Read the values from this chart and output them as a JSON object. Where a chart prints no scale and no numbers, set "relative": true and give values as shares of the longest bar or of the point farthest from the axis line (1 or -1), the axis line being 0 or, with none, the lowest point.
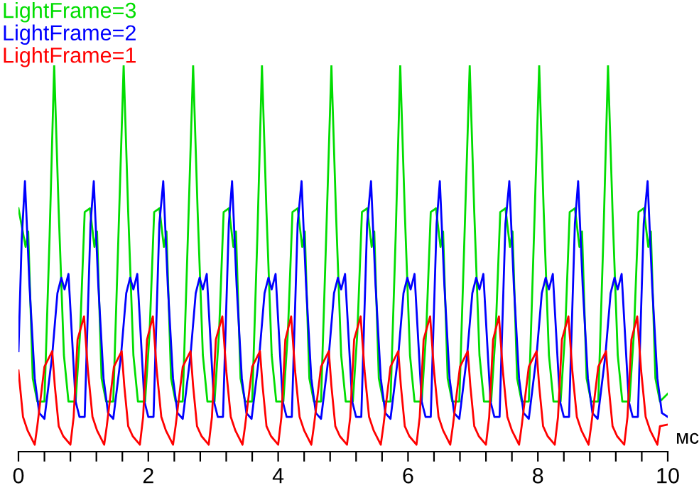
{
  "chart_data": {
    "type": "line",
    "relative": true,
    "xlabel": "мс",
    "xlim": [
      0,
      10
    ],
    "xticks": [
      0,
      {
        "value": 0.4,
        "label": null
      },
      {
        "value": 0.8,
        "label": null
      },
      {
        "value": 1.2,
        "label": null
      },
      {
        "value": 1.6,
        "label": null
      },
      2,
      {
        "value": 2.4,
        "label": null
      },
      {
        "value": 2.8,
        "label": null
      },
      {
        "value": 3.2,
        "label": null
      },
      {
        "value": 3.6,
        "label": null
      },
      4,
      {
        "value": 4.4,
        "label": null
      },
      {
        "value": 4.8,
        "label": null
      },
      {
        "value": 5.2,
        "label": null
      },
      {
        "value": 5.6,
        "label": null
      },
      6,
      {
        "value": 6.4,
        "label": null
      },
      {
        "value": 6.8,
        "label": null
      },
      {
        "value": 7.2,
        "label": null
      },
      {
        "value": 7.6,
        "label": null
      },
      8,
      {
        "value": 8.4,
        "label": null
      },
      {
        "value": 8.8,
        "label": null
      },
      {
        "value": 9.2,
        "label": null
      },
      {
        "value": 9.6,
        "label": null
      },
      10
    ],
    "legend": "top left",
    "grid": false,
    "marker": "none",
    "line_style": "solid",
    "series": [
      {
        "name": "LightFrame=3",
        "color": "#00dd00",
        "x": [
          0,
          0.11,
          0.15,
          0.22,
          0.29,
          0.4,
          0.48,
          0.55,
          0.62,
          0.7,
          0.77,
          0.88,
          0.95,
          1.02,
          1.1,
          1.17,
          1.21,
          1.28,
          1.35,
          1.46,
          1.54,
          1.62,
          1.69,
          1.77,
          1.84,
          1.95,
          2.02,
          2.09,
          2.17,
          2.24,
          2.28,
          2.35,
          2.42,
          2.53,
          2.61,
          2.69,
          2.76,
          2.84,
          2.91,
          3.02,
          3.09,
          3.16,
          3.24,
          3.31,
          3.35,
          3.42,
          3.49,
          3.6,
          3.68,
          3.75,
          3.82,
          3.9,
          3.97,
          4.08,
          4.15,
          4.22,
          4.3,
          4.37,
          4.41,
          4.48,
          4.55,
          4.66,
          4.74,
          4.82,
          4.89,
          4.97,
          5.04,
          5.15,
          5.22,
          5.29,
          5.37,
          5.44,
          5.48,
          5.55,
          5.62,
          5.73,
          5.81,
          5.88,
          5.95,
          6.03,
          6.1,
          6.21,
          6.28,
          6.35,
          6.43,
          6.5,
          6.54,
          6.61,
          6.68,
          6.79,
          6.87,
          6.95,
          7.02,
          7.1,
          7.17,
          7.28,
          7.35,
          7.42,
          7.5,
          7.57,
          7.61,
          7.68,
          7.75,
          7.86,
          7.94,
          8.02,
          8.09,
          8.17,
          8.24,
          8.35,
          8.42,
          8.49,
          8.57,
          8.64,
          8.68,
          8.75,
          8.82,
          8.93,
          9.01,
          9.08,
          9.15,
          9.23,
          9.3,
          9.41,
          9.48,
          9.55,
          9.63,
          9.7,
          9.74,
          9.81,
          9.88,
          10.0
        ],
        "values": [
          0.63,
          0.53,
          0.57,
          0.19,
          0.13,
          0.13,
          0.56,
          1,
          0.62,
          0.25,
          0.13,
          0.13,
          0.31,
          0.62,
          0.63,
          0.53,
          0.57,
          0.19,
          0.13,
          0.13,
          0.56,
          1,
          0.62,
          0.25,
          0.13,
          0.13,
          0.31,
          0.62,
          0.63,
          0.53,
          0.57,
          0.19,
          0.13,
          0.13,
          0.56,
          1,
          0.62,
          0.25,
          0.13,
          0.13,
          0.31,
          0.62,
          0.63,
          0.53,
          0.57,
          0.19,
          0.13,
          0.13,
          0.56,
          1,
          0.62,
          0.25,
          0.13,
          0.13,
          0.31,
          0.62,
          0.63,
          0.53,
          0.57,
          0.19,
          0.13,
          0.13,
          0.56,
          1,
          0.62,
          0.25,
          0.13,
          0.13,
          0.31,
          0.62,
          0.63,
          0.53,
          0.57,
          0.19,
          0.13,
          0.13,
          0.56,
          1,
          0.62,
          0.25,
          0.13,
          0.13,
          0.31,
          0.62,
          0.63,
          0.53,
          0.57,
          0.19,
          0.13,
          0.13,
          0.56,
          1,
          0.62,
          0.25,
          0.13,
          0.13,
          0.31,
          0.62,
          0.63,
          0.53,
          0.57,
          0.19,
          0.13,
          0.13,
          0.56,
          1,
          0.62,
          0.25,
          0.13,
          0.13,
          0.31,
          0.62,
          0.63,
          0.53,
          0.57,
          0.19,
          0.13,
          0.13,
          0.56,
          1,
          0.62,
          0.25,
          0.13,
          0.13,
          0.31,
          0.62,
          0.63,
          0.53,
          0.57,
          0.19,
          0.13,
          0.15
        ]
      },
      {
        "name": "LightFrame=2",
        "color": "#0000ff",
        "x": [
          0,
          0.05,
          0.1,
          0.17,
          0.25,
          0.32,
          0.4,
          0.52,
          0.6,
          0.66,
          0.71,
          0.77,
          0.82,
          0.88,
          0.94,
          1.02,
          1.07,
          1.11,
          1.16,
          1.23,
          1.31,
          1.38,
          1.46,
          1.58,
          1.66,
          1.72,
          1.77,
          1.83,
          1.88,
          1.94,
          2.0,
          2.08,
          2.13,
          2.17,
          2.23,
          2.3,
          2.38,
          2.45,
          2.53,
          2.65,
          2.73,
          2.79,
          2.84,
          2.9,
          2.95,
          3.01,
          3.07,
          3.15,
          3.2,
          3.24,
          3.29,
          3.36,
          3.44,
          3.51,
          3.59,
          3.71,
          3.79,
          3.85,
          3.9,
          3.96,
          4.01,
          4.07,
          4.13,
          4.21,
          4.26,
          4.3,
          4.36,
          4.43,
          4.51,
          4.58,
          4.66,
          4.78,
          4.86,
          4.92,
          4.97,
          5.03,
          5.08,
          5.14,
          5.2,
          5.28,
          5.33,
          5.37,
          5.43,
          5.5,
          5.58,
          5.65,
          5.73,
          5.85,
          5.93,
          5.99,
          6.04,
          6.1,
          6.15,
          6.21,
          6.27,
          6.35,
          6.4,
          6.44,
          6.49,
          6.56,
          6.64,
          6.71,
          6.79,
          6.91,
          6.99,
          7.05,
          7.1,
          7.16,
          7.21,
          7.27,
          7.33,
          7.41,
          7.46,
          7.5,
          7.56,
          7.63,
          7.71,
          7.78,
          7.86,
          7.98,
          8.06,
          8.12,
          8.17,
          8.23,
          8.28,
          8.34,
          8.4,
          8.48,
          8.53,
          8.57,
          8.62,
          8.69,
          8.77,
          8.84,
          8.92,
          9.04,
          9.12,
          9.18,
          9.23,
          9.29,
          9.34,
          9.4,
          9.46,
          9.54,
          9.59,
          9.63,
          9.69,
          9.76,
          9.84,
          9.91,
          10.0
        ],
        "values": [
          0.26,
          0.55,
          0.7,
          0.43,
          0.19,
          0.1,
          0.085,
          0.25,
          0.41,
          0.45,
          0.42,
          0.46,
          0.31,
          0.13,
          0.09,
          0.09,
          0.37,
          0.59,
          0.7,
          0.43,
          0.19,
          0.1,
          0.085,
          0.25,
          0.41,
          0.45,
          0.42,
          0.46,
          0.31,
          0.13,
          0.09,
          0.09,
          0.37,
          0.59,
          0.7,
          0.43,
          0.19,
          0.1,
          0.085,
          0.25,
          0.41,
          0.45,
          0.42,
          0.46,
          0.31,
          0.13,
          0.09,
          0.09,
          0.37,
          0.59,
          0.7,
          0.43,
          0.19,
          0.1,
          0.085,
          0.25,
          0.41,
          0.45,
          0.42,
          0.46,
          0.31,
          0.13,
          0.09,
          0.09,
          0.37,
          0.59,
          0.7,
          0.43,
          0.19,
          0.1,
          0.085,
          0.25,
          0.41,
          0.45,
          0.42,
          0.46,
          0.31,
          0.13,
          0.09,
          0.09,
          0.37,
          0.59,
          0.7,
          0.43,
          0.19,
          0.1,
          0.085,
          0.25,
          0.41,
          0.45,
          0.42,
          0.46,
          0.31,
          0.13,
          0.09,
          0.09,
          0.37,
          0.59,
          0.7,
          0.43,
          0.19,
          0.1,
          0.085,
          0.25,
          0.41,
          0.45,
          0.42,
          0.46,
          0.31,
          0.13,
          0.09,
          0.09,
          0.37,
          0.59,
          0.7,
          0.43,
          0.19,
          0.1,
          0.085,
          0.25,
          0.41,
          0.45,
          0.42,
          0.46,
          0.31,
          0.13,
          0.09,
          0.09,
          0.37,
          0.59,
          0.7,
          0.43,
          0.19,
          0.1,
          0.085,
          0.25,
          0.41,
          0.45,
          0.42,
          0.46,
          0.31,
          0.13,
          0.09,
          0.09,
          0.37,
          0.59,
          0.7,
          0.43,
          0.19,
          0.1,
          0.09
        ]
      },
      {
        "name": "LightFrame=1",
        "color": "#ff0000",
        "x": [
          0,
          0.07,
          0.14,
          0.25,
          0.29,
          0.4,
          0.52,
          0.56,
          0.62,
          0.69,
          0.8,
          0.85,
          0.91,
          1.01,
          1.07,
          1.14,
          1.21,
          1.32,
          1.36,
          1.47,
          1.59,
          1.63,
          1.69,
          1.76,
          1.87,
          1.92,
          1.98,
          2.07,
          2.13,
          2.2,
          2.27,
          2.38,
          2.42,
          2.53,
          2.65,
          2.69,
          2.75,
          2.82,
          2.93,
          2.98,
          3.04,
          3.14,
          3.2,
          3.27,
          3.34,
          3.45,
          3.49,
          3.6,
          3.72,
          3.76,
          3.82,
          3.89,
          4.0,
          4.05,
          4.11,
          4.2,
          4.26,
          4.33,
          4.4,
          4.51,
          4.55,
          4.66,
          4.78,
          4.82,
          4.88,
          4.95,
          5.06,
          5.11,
          5.17,
          5.27,
          5.33,
          5.4,
          5.47,
          5.58,
          5.62,
          5.73,
          5.85,
          5.89,
          5.95,
          6.02,
          6.13,
          6.18,
          6.24,
          6.34,
          6.4,
          6.47,
          6.54,
          6.65,
          6.69,
          6.8,
          6.92,
          6.96,
          7.02,
          7.09,
          7.2,
          7.25,
          7.31,
          7.4,
          7.46,
          7.53,
          7.6,
          7.71,
          7.75,
          7.86,
          7.98,
          8.02,
          8.08,
          8.15,
          8.26,
          8.31,
          8.37,
          8.47,
          8.53,
          8.6,
          8.67,
          8.78,
          8.82,
          8.93,
          9.05,
          9.09,
          9.15,
          9.22,
          9.33,
          9.38,
          9.44,
          9.53,
          9.59,
          9.66,
          9.73,
          9.84,
          9.88,
          10.0
        ],
        "values": [
          0.21,
          0.09,
          0.055,
          0.018,
          0.066,
          0.22,
          0.26,
          0.17,
          0.066,
          0.04,
          0.018,
          0.09,
          0.29,
          0.35,
          0.21,
          0.09,
          0.055,
          0.018,
          0.066,
          0.22,
          0.26,
          0.17,
          0.066,
          0.04,
          0.018,
          0.09,
          0.29,
          0.35,
          0.21,
          0.09,
          0.055,
          0.018,
          0.066,
          0.22,
          0.26,
          0.17,
          0.066,
          0.04,
          0.018,
          0.09,
          0.29,
          0.35,
          0.21,
          0.09,
          0.055,
          0.018,
          0.066,
          0.22,
          0.26,
          0.17,
          0.066,
          0.04,
          0.018,
          0.09,
          0.29,
          0.35,
          0.21,
          0.09,
          0.055,
          0.018,
          0.066,
          0.22,
          0.26,
          0.17,
          0.066,
          0.04,
          0.018,
          0.09,
          0.29,
          0.35,
          0.21,
          0.09,
          0.055,
          0.018,
          0.066,
          0.22,
          0.26,
          0.17,
          0.066,
          0.04,
          0.018,
          0.09,
          0.29,
          0.35,
          0.21,
          0.09,
          0.055,
          0.018,
          0.066,
          0.22,
          0.26,
          0.17,
          0.066,
          0.04,
          0.018,
          0.09,
          0.29,
          0.35,
          0.21,
          0.09,
          0.055,
          0.018,
          0.066,
          0.22,
          0.26,
          0.17,
          0.066,
          0.04,
          0.018,
          0.09,
          0.29,
          0.35,
          0.21,
          0.09,
          0.055,
          0.018,
          0.066,
          0.22,
          0.26,
          0.17,
          0.066,
          0.04,
          0.018,
          0.09,
          0.29,
          0.35,
          0.21,
          0.09,
          0.055,
          0.018,
          0.066,
          0.07
        ]
      }
    ]
  }
}
